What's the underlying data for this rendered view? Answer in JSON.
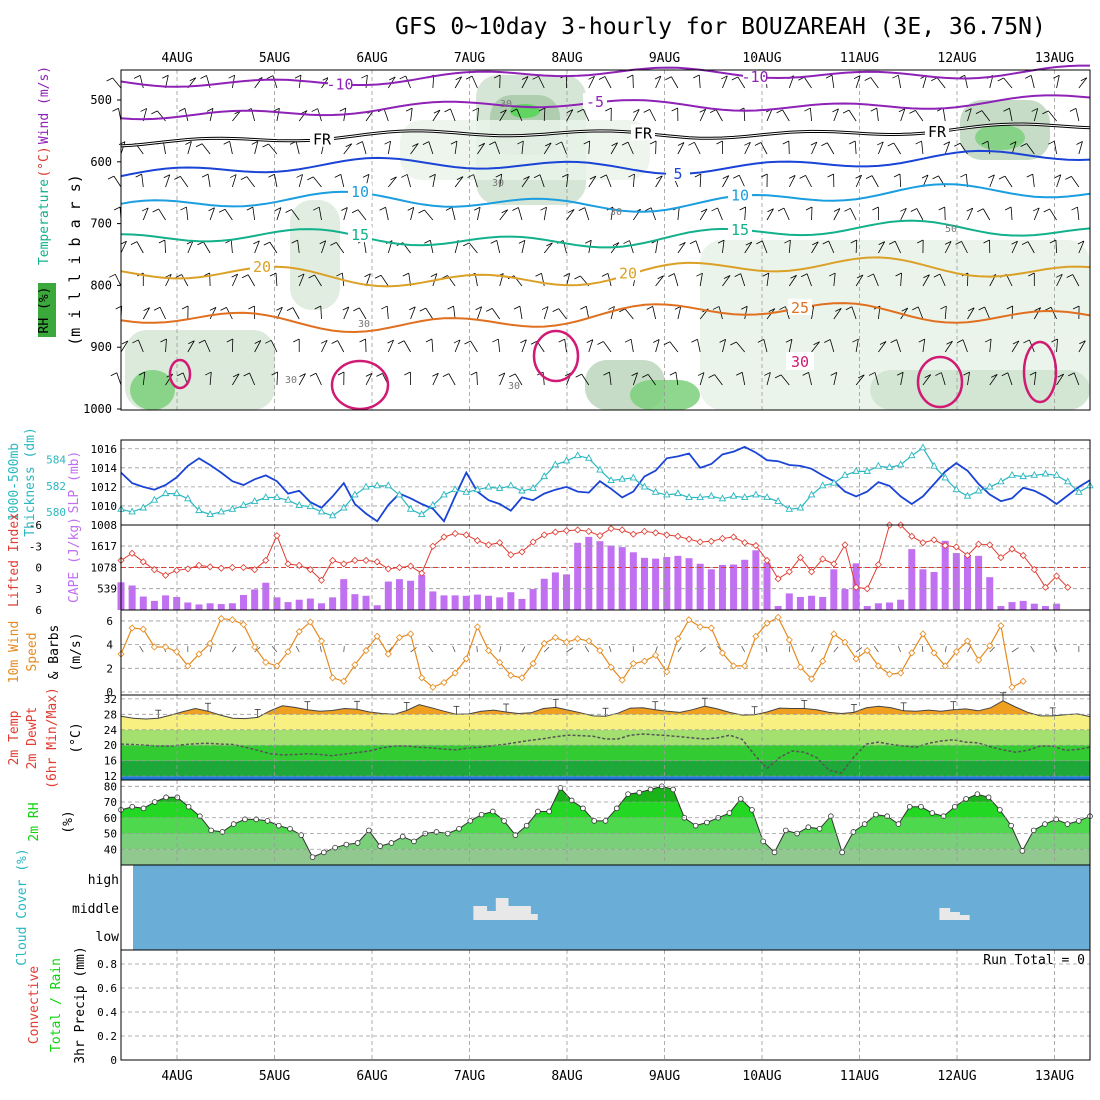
{
  "title": "GFS 0~10day 3-hourly for BOUZAREAH (3E, 36.75N)",
  "dates": [
    "4AUG",
    "5AUG",
    "6AUG",
    "7AUG",
    "8AUG",
    "9AUG",
    "10AUG",
    "11AUG",
    "12AUG",
    "13AUG"
  ],
  "run_total": "Run Total = 0",
  "colors": {
    "purple": "#8e22b6",
    "black": "#000000",
    "blue": "#1a44d6",
    "lightblue": "#1a9ee0",
    "teal": "#13b08c",
    "gold": "#dba026",
    "orange": "#e07020",
    "magenta": "#d01a74",
    "cyan": "#2bb7c0",
    "cape": "#c070f0",
    "lifted": "#e03c32",
    "wind10": "#e58a1e",
    "rhgreen": "#12d212",
    "cloud": "#6aaed8"
  },
  "chart_data": [
    {
      "id": "upper-air",
      "type": "contour",
      "ylabel_parts": [
        "RH (%)",
        "Temperature",
        "(°C)",
        "Wind (m/s)"
      ],
      "axis_label": "(m i l l i b a r s)",
      "y_ticks": [
        "500",
        "600",
        "700",
        "800",
        "900",
        "1000"
      ],
      "contours": [
        {
          "name": "temp-minus10",
          "label": "-10",
          "color": "purple",
          "level": 470,
          "amp": 8,
          "x_labels": [
            340,
            755
          ]
        },
        {
          "name": "temp-minus5",
          "label": "-5",
          "color": "purple",
          "level": 520,
          "amp": 8,
          "x_labels": [
            595
          ]
        },
        {
          "name": "freezing-level",
          "label": "FR",
          "color": "black",
          "level": 565,
          "amp": 6,
          "x_labels": [
            322,
            643,
            937
          ]
        },
        {
          "name": "temp-5",
          "label": "5",
          "color": "blue",
          "level": 615,
          "amp": 10,
          "x_labels": [
            678
          ]
        },
        {
          "name": "temp-10",
          "label": "10",
          "color": "lightblue",
          "level": 672,
          "amp": 12,
          "x_labels": [
            360,
            740
          ]
        },
        {
          "name": "temp-15",
          "label": "15",
          "color": "teal",
          "level": 730,
          "amp": 12,
          "x_labels": [
            360,
            740
          ]
        },
        {
          "name": "temp-20",
          "label": "20",
          "color": "gold",
          "level": 790,
          "amp": 14,
          "x_labels": [
            262,
            628
          ]
        },
        {
          "name": "temp-25",
          "label": "25",
          "color": "orange",
          "level": 860,
          "amp": 14,
          "x_labels": [
            800
          ]
        }
      ],
      "labels_extra": [
        "30",
        "30",
        "30",
        "30",
        "30",
        "50"
      ]
    },
    {
      "id": "thickness-slp",
      "type": "line",
      "ylabel_left": [
        "1000-500mb",
        "Thickness (dm)"
      ],
      "ylabel_right": "SLP (mb)",
      "thickness_ticks": [
        "584",
        "582",
        "580"
      ],
      "slp_ticks": [
        "1016",
        "1014",
        "1012",
        "1010",
        "1008"
      ],
      "slp_range": [
        1008,
        1016.5
      ],
      "thickness_range": [
        579,
        585.5
      ],
      "slp": [
        1013.5,
        1012.4,
        1012,
        1011.7,
        1012.2,
        1013,
        1014.2,
        1015,
        1014.3,
        1013.5,
        1012.6,
        1012.2,
        1012.8,
        1013.2,
        1012.6,
        1011.3,
        1011.6,
        1010.4,
        1009.8,
        1011,
        1012.4,
        1010.2,
        1009.2,
        1008.4,
        1010.1,
        1011.3,
        1010.8,
        1010.2,
        1009.7,
        1008.4,
        1011,
        1013.5,
        1011.5,
        1010.6,
        1010.2,
        1009.5,
        1010.9,
        1010.6,
        1011.3,
        1011.7,
        1012,
        1011.5,
        1011.4,
        1012.6,
        1011.8,
        1010.9,
        1011.5,
        1013.1,
        1013.7,
        1015,
        1015.2,
        1015.5,
        1014,
        1014.4,
        1015.4,
        1015.7,
        1016.2,
        1015.6,
        1014.8,
        1014.7,
        1014.3,
        1014.2,
        1013.9,
        1013.2,
        1012.6,
        1011.5,
        1011,
        1011.5,
        1012.5,
        1012.1,
        1011,
        1010.2,
        1011,
        1012.3,
        1013.6,
        1014.5,
        1013.7,
        1012.3,
        1011.2,
        1010.5,
        1010.8,
        1011.9,
        1011.6,
        1011,
        1010.2,
        1011.1,
        1012,
        1012.7
      ],
      "thickness": [
        580.2,
        580,
        580.3,
        580.9,
        581.4,
        581.4,
        581,
        580.1,
        579.8,
        580,
        580.2,
        580.5,
        580.8,
        581.1,
        581.1,
        580.9,
        580.5,
        580.4,
        580,
        579.7,
        580.3,
        581.3,
        581.9,
        582,
        582,
        581.3,
        580.2,
        579.8,
        580.5,
        581.3,
        581.7,
        581.5,
        581.7,
        581.9,
        581.8,
        582,
        581.6,
        581.8,
        582.7,
        583.6,
        583.9,
        584.3,
        584.1,
        583.2,
        582.4,
        582.5,
        582.6,
        581.9,
        581.5,
        581.3,
        581.4,
        581.1,
        581.1,
        581.2,
        581,
        581.2,
        581.1,
        581.3,
        581.1,
        580.8,
        580.2,
        580.3,
        581.3,
        582,
        582.2,
        582.8,
        583.1,
        583.1,
        583.5,
        583.4,
        583.6,
        584.3,
        584.9,
        583.5,
        582.6,
        581.7,
        581.2,
        581.6,
        581.9,
        582.3,
        582.8,
        582.7,
        582.8,
        582.9,
        582.8,
        582.3,
        581.5,
        582
      ]
    },
    {
      "id": "cape-li",
      "type": "bar",
      "ylabel_left": "Lifted Index",
      "ylabel_right": "CAPE (J/kg)",
      "li_ticks": [
        "-6",
        "-3",
        "0",
        "3",
        "6"
      ],
      "cape_ticks": [
        "1617",
        "1078",
        "539"
      ],
      "cape_max": 2150,
      "cape": [
        700,
        620,
        340,
        230,
        370,
        330,
        190,
        140,
        170,
        150,
        170,
        380,
        520,
        690,
        320,
        200,
        260,
        290,
        170,
        320,
        780,
        400,
        360,
        120,
        720,
        780,
        740,
        890,
        470,
        370,
        370,
        360,
        390,
        360,
        320,
        450,
        280,
        530,
        790,
        950,
        900,
        1700,
        1850,
        1740,
        1630,
        1590,
        1460,
        1320,
        1300,
        1340,
        1370,
        1310,
        1170,
        1030,
        1140,
        1150,
        1270,
        1510,
        1200,
        100,
        420,
        330,
        360,
        330,
        1030,
        530,
        1180,
        100,
        170,
        190,
        260,
        1540,
        1030,
        960,
        1750,
        1440,
        1390,
        1370,
        830,
        100,
        200,
        230,
        160,
        100,
        160
      ],
      "lifted": [
        -1,
        -2,
        -0.8,
        0.3,
        1.1,
        0.4,
        0.2,
        -0.3,
        -0.1,
        0.1,
        0,
        0,
        0.3,
        -1,
        -4.5,
        -0.5,
        -0.3,
        0.3,
        1.8,
        -1,
        -0.5,
        -1,
        -1,
        -0.8,
        0.2,
        0,
        -0.2,
        0.8,
        -3,
        -4.3,
        -4.8,
        -4.6,
        -3.8,
        -3.2,
        -3.5,
        -1.8,
        -2.2,
        -3.6,
        -4.6,
        -5,
        -5.2,
        -5.3,
        -5.1,
        -4.5,
        -5.5,
        -5.3,
        -4.7,
        -5.1,
        -4.9,
        -4.6,
        -4.4,
        -4,
        -3.6,
        -3.7,
        -4.1,
        -4.3,
        -3.5,
        -3.1,
        -1,
        1.6,
        0.6,
        -1.4,
        0.6,
        -1.2,
        -0.5,
        -3.2,
        2.8,
        3,
        -0.4,
        -6.2,
        -6,
        -4.4,
        -3.5,
        -3.9,
        -3.1,
        -2.9,
        -1.7,
        -3.3,
        -3.2,
        -1.4,
        -2.6,
        -1.7,
        0.3,
        2.8,
        1.2,
        2.8
      ]
    },
    {
      "id": "wind10m",
      "type": "line",
      "ylabel_parts": [
        "10m Wind",
        "Speed",
        "(m/s)",
        "& Barbs"
      ],
      "y_ticks": [
        "6",
        "4",
        "2",
        "0"
      ],
      "y_range": [
        0,
        6.5
      ],
      "speed": [
        3.2,
        5.4,
        5.3,
        3.8,
        3.8,
        3.4,
        2.2,
        3.2,
        4.1,
        6.2,
        6.1,
        5.7,
        3.8,
        2.5,
        2.2,
        3.4,
        5.1,
        5.9,
        4.3,
        1.2,
        0.9,
        2.3,
        3.5,
        4.7,
        3.2,
        4.6,
        4.9,
        1.2,
        0.4,
        0.8,
        1.6,
        2.8,
        5.5,
        3.5,
        2.5,
        1.4,
        1.2,
        2.4,
        4.1,
        4.6,
        4.2,
        4.5,
        4.3,
        3.5,
        2.1,
        1,
        2.4,
        2.6,
        3.1,
        1.7,
        4.5,
        6.1,
        5.5,
        5.4,
        3.3,
        2.2,
        2.2,
        4.7,
        5.8,
        6.3,
        4.4,
        2.1,
        1.1,
        2.6,
        4.9,
        4.2,
        2.8,
        3.5,
        2.2,
        1.5,
        1.6,
        3.3,
        4.9,
        3.3,
        2.2,
        3.4,
        4.3,
        2.7,
        3.9,
        5.6,
        0.4,
        0.9
      ]
    },
    {
      "id": "temp2m",
      "type": "area",
      "ylabel_parts": [
        "2m Temp",
        "2m DewPt",
        "(6hr Min/Max)",
        "(°C)"
      ],
      "y_ticks": [
        "32",
        "28",
        "24",
        "20",
        "16",
        "12"
      ],
      "y_range": [
        11,
        33
      ],
      "temp": [
        27.5,
        27,
        26.8,
        27,
        27.8,
        28.7,
        29.5,
        28.8,
        27.8,
        27,
        26.9,
        27.2,
        28.9,
        30.2,
        29.8,
        29.2,
        28.8,
        29,
        29.5,
        29.3,
        28.6,
        28.2,
        28,
        29,
        30.5,
        29.7,
        28.8,
        28,
        28.1,
        28.8,
        29.1,
        28.6,
        28.2,
        28.4,
        29.5,
        29.8,
        29.1,
        28.4,
        27.6,
        27.5,
        28.3,
        29.6,
        29.7,
        29.2,
        28.8,
        28.5,
        29.2,
        30.1,
        29.4,
        28.5,
        27.8,
        27.9,
        28.6,
        29.6,
        29.5,
        29.5,
        29.2,
        28.5,
        28.2,
        28.5,
        29.7,
        30.1,
        29.7,
        28.9,
        28.8,
        29.1,
        28.8,
        29.2,
        29.4,
        28.9,
        29.7,
        31.5,
        29.9,
        28.5,
        27.6,
        27.6,
        27.9,
        28.1,
        27.4
      ],
      "dewpt": [
        20.3,
        20.2,
        20,
        19.8,
        19.8,
        20.1,
        20.4,
        20.5,
        20.3,
        20.2,
        19.5,
        18.7,
        17.8,
        17.5,
        17.6,
        17.8,
        17.6,
        17.3,
        17.7,
        18.1,
        18.5,
        19.3,
        19.8,
        19.8,
        19.5,
        19.3,
        19,
        18.8,
        19.3,
        19.5,
        19.9,
        20.3,
        20.8,
        21.3,
        21.7,
        22.2,
        22.6,
        22.5,
        22.3,
        21.6,
        21.6,
        22.6,
        22.9,
        22.7,
        22.5,
        22.2,
        21.9,
        21.6,
        21.9,
        22.6,
        21.5,
        17.5,
        14,
        16.8,
        18.5,
        18.2,
        16.8,
        13.5,
        12.8,
        17,
        20.3,
        20.8,
        20.2,
        19.8,
        19.5,
        20.5,
        21.1,
        21.4,
        20.8,
        20.6,
        19.6,
        18.8,
        18.2,
        18.7,
        19.8,
        19.8,
        18.7,
        18.9,
        19.5
      ]
    },
    {
      "id": "rh2m",
      "type": "area",
      "ylabel_parts": [
        "2m RH",
        "(%)"
      ],
      "y_ticks": [
        "80",
        "70",
        "60",
        "50",
        "40"
      ],
      "y_range": [
        30,
        84
      ],
      "rh": [
        65,
        67,
        66,
        70,
        73,
        73,
        67,
        61,
        52,
        51,
        56,
        59,
        59,
        58,
        55,
        53,
        49,
        35,
        38,
        41,
        43,
        44,
        52,
        42,
        44,
        48,
        45,
        50,
        51,
        50,
        53,
        58,
        62,
        64,
        58,
        49,
        55,
        64,
        64,
        79,
        71,
        66,
        58,
        58,
        66,
        75,
        76,
        78,
        80,
        78,
        60,
        55,
        57,
        60,
        63,
        72,
        65,
        45,
        38,
        52,
        50,
        54,
        53,
        61,
        38,
        51,
        56,
        62,
        61,
        56,
        67,
        67,
        63,
        61,
        67,
        72,
        75,
        73,
        65,
        55,
        39,
        52,
        56,
        59,
        56,
        58,
        61
      ]
    },
    {
      "id": "cloud-cover",
      "type": "bar",
      "ylabel": "Cloud Cover (%)",
      "levels": [
        "high",
        "middle",
        "low"
      ],
      "patches": [
        [
          7.05,
          0.13
        ],
        [
          7.18,
          0.1
        ],
        [
          7.28,
          0.12
        ],
        [
          7.4,
          0.13
        ],
        [
          7.53,
          0.1
        ],
        [
          7.63,
          0.07
        ],
        [
          11.83,
          0.1
        ],
        [
          11.93,
          0.1
        ],
        [
          12.03,
          0.1
        ]
      ]
    },
    {
      "id": "precip",
      "type": "bar",
      "ylabel_parts": [
        "3hr Precip (mm)",
        "Total / Rain",
        "Convective"
      ],
      "y_ticks": [
        "0.8",
        "0.6",
        "0.4",
        "0.2",
        "0"
      ],
      "values": []
    }
  ]
}
